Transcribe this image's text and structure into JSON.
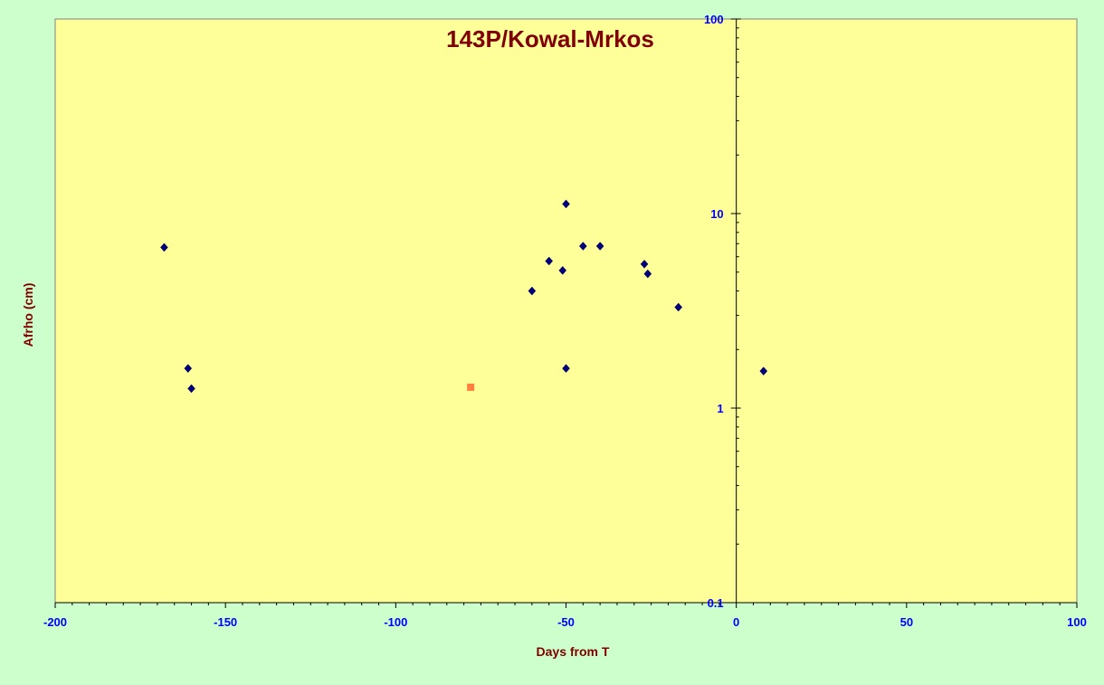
{
  "chart_data": {
    "type": "scatter",
    "title": "143P/Kowal-Mrkos",
    "xlabel": "Days from  T",
    "ylabel": "Afrho (cm)",
    "xlim": [
      -200,
      100
    ],
    "ylim": [
      0.1,
      100
    ],
    "y_scale": "log",
    "x_ticks": [
      -200,
      -150,
      -100,
      -50,
      0,
      50,
      100
    ],
    "x_tick_labels": [
      "-200",
      "-150",
      "-100",
      "-50",
      "0",
      "50",
      "100"
    ],
    "y_ticks": [
      0.1,
      1,
      10,
      100
    ],
    "y_tick_labels": [
      "0.1",
      "1",
      "10",
      "100"
    ],
    "grid": false,
    "legend": false,
    "series": [
      {
        "marker": "diamond",
        "color": "#000080",
        "points": [
          {
            "x": -168,
            "y": 6.7
          },
          {
            "x": -161,
            "y": 1.6
          },
          {
            "x": -160,
            "y": 1.26
          },
          {
            "x": -60,
            "y": 4.0
          },
          {
            "x": -55,
            "y": 5.7
          },
          {
            "x": -51,
            "y": 5.1
          },
          {
            "x": -50,
            "y": 11.2
          },
          {
            "x": -50,
            "y": 1.6
          },
          {
            "x": -45,
            "y": 6.8
          },
          {
            "x": -40,
            "y": 6.8
          },
          {
            "x": -27,
            "y": 5.5
          },
          {
            "x": -26,
            "y": 4.9
          },
          {
            "x": -17,
            "y": 3.3
          },
          {
            "x": 8,
            "y": 1.55
          }
        ]
      },
      {
        "marker": "square",
        "color": "#ff8040",
        "points": [
          {
            "x": -78,
            "y": 1.28
          }
        ]
      }
    ]
  }
}
